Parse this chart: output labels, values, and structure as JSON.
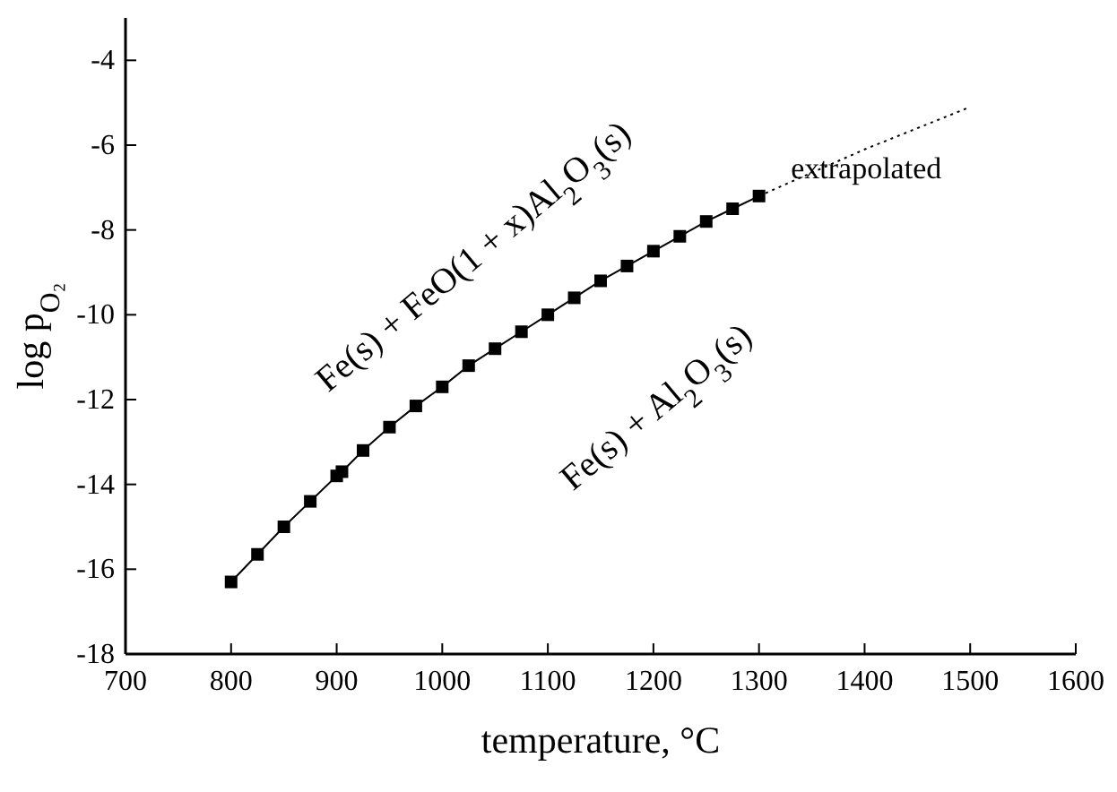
{
  "chart_data": {
    "type": "line",
    "xlabel": "temperature, °C",
    "ylabel": "log p$_{O₂}$",
    "xlim": [
      700,
      1600
    ],
    "xticks": [
      700,
      800,
      900,
      1000,
      1100,
      1200,
      1300,
      1400,
      1500,
      1600
    ],
    "ylim": [
      -18,
      -3
    ],
    "yticks": [
      -18,
      -16,
      -14,
      -12,
      -10,
      -8,
      -6,
      -4
    ],
    "series": [
      {
        "color": "#000000",
        "marker": "square",
        "line_style": "solid",
        "x": [
          800,
          825,
          850,
          875,
          900,
          905,
          925,
          950,
          975,
          1000,
          1025,
          1050,
          1075,
          1100,
          1125,
          1150,
          1175,
          1200,
          1225,
          1250,
          1275,
          1300
        ],
        "values": [
          -16.3,
          -15.65,
          -15.0,
          -14.4,
          -13.8,
          -13.7,
          -13.2,
          -12.65,
          -12.15,
          -11.7,
          -11.2,
          -10.8,
          -10.4,
          -10.0,
          -9.6,
          -9.2,
          -8.85,
          -8.5,
          -8.15,
          -7.8,
          -7.5,
          -7.2
        ]
      },
      {
        "name": "extrapolated",
        "color": "#000000",
        "marker": "none",
        "line_style": "dotted",
        "x": [
          1300,
          1400,
          1500
        ],
        "values": [
          -7.2,
          -6.1,
          -5.1
        ]
      }
    ],
    "annotations": [
      "Fe(s) + FeO(1 + x)Al$_{2}$O$_{3}$(s)",
      "Fe(s) + Al$_{2}$O$_{3}$(s)"
    ]
  }
}
